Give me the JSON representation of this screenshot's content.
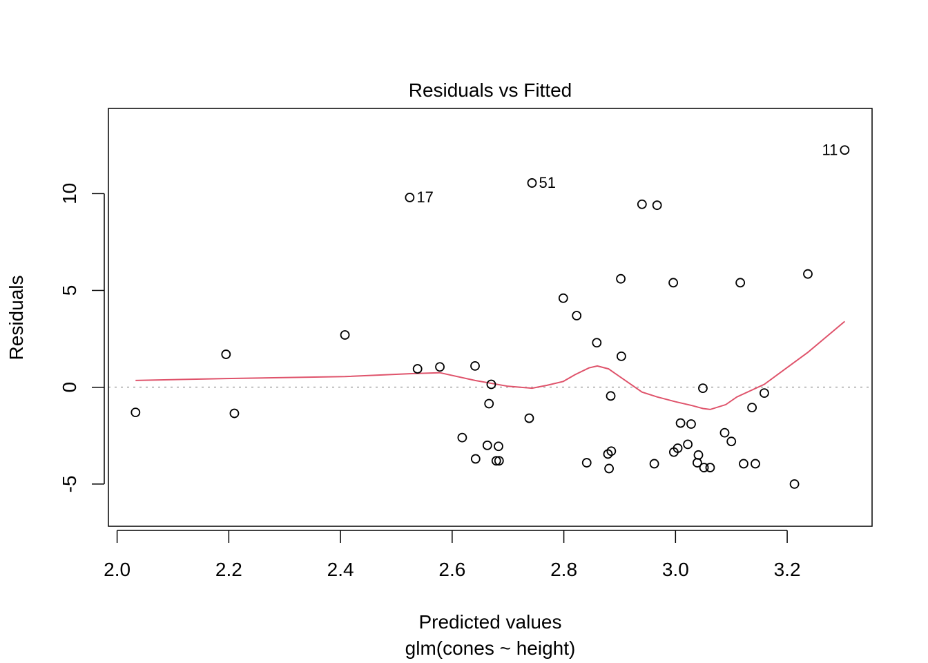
{
  "chart_data": {
    "type": "scatter",
    "title": "Residuals vs Fitted",
    "xlabel": "Predicted values",
    "subtitle": "glm(cones ~ height)",
    "ylabel": "Residuals",
    "xlim": [
      1.9844,
      3.352
    ],
    "ylim": [
      -7.18,
      14.4
    ],
    "x_ticks": [
      2.0,
      2.2,
      2.4,
      2.6,
      2.8,
      3.0,
      3.2
    ],
    "x_tick_labels": [
      "2.0",
      "2.2",
      "2.4",
      "2.6",
      "2.8",
      "3.0",
      "3.2"
    ],
    "y_ticks": [
      -5,
      0,
      5,
      10
    ],
    "y_tick_labels": [
      "-5",
      "0",
      "5",
      "10"
    ],
    "reference_line_y": 0,
    "points": [
      {
        "x": 2.033,
        "y": -1.3
      },
      {
        "x": 2.195,
        "y": 1.7
      },
      {
        "x": 2.21,
        "y": -1.35
      },
      {
        "x": 2.408,
        "y": 2.7
      },
      {
        "x": 2.524,
        "y": 9.8,
        "label": "17"
      },
      {
        "x": 2.538,
        "y": 0.95
      },
      {
        "x": 2.578,
        "y": 1.05
      },
      {
        "x": 2.618,
        "y": -2.6
      },
      {
        "x": 2.641,
        "y": 1.1
      },
      {
        "x": 2.642,
        "y": -3.7
      },
      {
        "x": 2.663,
        "y": -3.0
      },
      {
        "x": 2.666,
        "y": -0.85
      },
      {
        "x": 2.67,
        "y": 0.15
      },
      {
        "x": 2.679,
        "y": -3.8
      },
      {
        "x": 2.683,
        "y": -3.05
      },
      {
        "x": 2.684,
        "y": -3.8
      },
      {
        "x": 2.738,
        "y": -1.6
      },
      {
        "x": 2.743,
        "y": 10.55,
        "label": "51"
      },
      {
        "x": 2.799,
        "y": 4.6
      },
      {
        "x": 2.823,
        "y": 3.7
      },
      {
        "x": 2.841,
        "y": -3.9
      },
      {
        "x": 2.859,
        "y": 2.3
      },
      {
        "x": 2.879,
        "y": -3.45
      },
      {
        "x": 2.881,
        "y": -4.2
      },
      {
        "x": 2.884,
        "y": -0.45
      },
      {
        "x": 2.885,
        "y": -3.3
      },
      {
        "x": 2.902,
        "y": 5.6
      },
      {
        "x": 2.903,
        "y": 1.6
      },
      {
        "x": 2.94,
        "y": 9.45
      },
      {
        "x": 2.962,
        "y": -3.95
      },
      {
        "x": 2.967,
        "y": 9.4
      },
      {
        "x": 2.996,
        "y": 5.4
      },
      {
        "x": 2.997,
        "y": -3.35
      },
      {
        "x": 3.004,
        "y": -3.15
      },
      {
        "x": 3.009,
        "y": -1.85
      },
      {
        "x": 3.022,
        "y": -2.95
      },
      {
        "x": 3.028,
        "y": -1.9
      },
      {
        "x": 3.039,
        "y": -3.9
      },
      {
        "x": 3.041,
        "y": -3.5
      },
      {
        "x": 3.049,
        "y": -0.05
      },
      {
        "x": 3.051,
        "y": -4.15
      },
      {
        "x": 3.062,
        "y": -4.15
      },
      {
        "x": 3.088,
        "y": -2.35
      },
      {
        "x": 3.1,
        "y": -2.8
      },
      {
        "x": 3.116,
        "y": 5.4
      },
      {
        "x": 3.122,
        "y": -3.95
      },
      {
        "x": 3.137,
        "y": -1.05
      },
      {
        "x": 3.143,
        "y": -3.95
      },
      {
        "x": 3.159,
        "y": -0.3
      },
      {
        "x": 3.213,
        "y": -5.0
      },
      {
        "x": 3.237,
        "y": 5.85
      },
      {
        "x": 3.303,
        "y": 12.25,
        "label": "11"
      }
    ],
    "smoother": {
      "name": "lowess",
      "color": "#DF536B",
      "x": [
        2.033,
        2.195,
        2.408,
        2.524,
        2.578,
        2.641,
        2.7,
        2.743,
        2.77,
        2.799,
        2.82,
        2.845,
        2.86,
        2.88,
        2.9,
        2.94,
        2.967,
        3.0,
        3.03,
        3.049,
        3.062,
        3.09,
        3.11,
        3.159,
        3.237,
        3.303
      ],
      "y": [
        0.35,
        0.45,
        0.55,
        0.7,
        0.75,
        0.35,
        0.05,
        -0.05,
        0.1,
        0.3,
        0.65,
        1.0,
        1.1,
        0.95,
        0.55,
        -0.25,
        -0.5,
        -0.75,
        -0.95,
        -1.1,
        -1.15,
        -0.9,
        -0.5,
        0.15,
        1.8,
        3.4
      ]
    }
  }
}
